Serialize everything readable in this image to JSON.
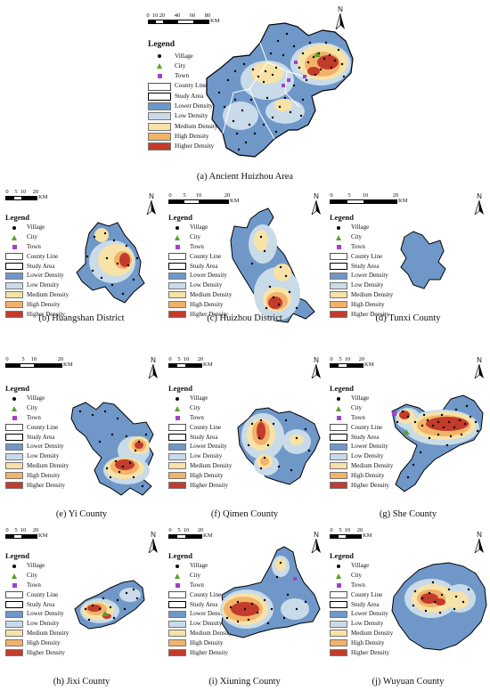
{
  "legend": {
    "title": "Legend",
    "items": [
      {
        "key": "village",
        "label": "Village",
        "symbol": "dot",
        "color": "#000000"
      },
      {
        "key": "city",
        "label": "City",
        "symbol": "triangle",
        "color": "#5aa02c"
      },
      {
        "key": "town",
        "label": "Town",
        "symbol": "square",
        "color": "#a43fd0"
      },
      {
        "key": "county",
        "label": "County Line",
        "symbol": "box-thin",
        "color": "#ffffff"
      },
      {
        "key": "study",
        "label": "Study Area",
        "symbol": "box-thick",
        "color": "#ffffff"
      },
      {
        "key": "lower",
        "label": "Lower Density",
        "symbol": "fill",
        "color": "#6f98c9"
      },
      {
        "key": "low",
        "label": "Low Density",
        "symbol": "fill",
        "color": "#c9dbe8"
      },
      {
        "key": "medium",
        "label": "Medium Density",
        "symbol": "fill",
        "color": "#f7e2a7"
      },
      {
        "key": "high",
        "label": "High Density",
        "symbol": "fill",
        "color": "#f2b26a"
      },
      {
        "key": "higher",
        "label": "Higher Density",
        "symbol": "fill",
        "color": "#c23b2b"
      }
    ]
  },
  "north_label": "N",
  "panels": [
    {
      "id": "a",
      "caption": "(a) Ancient Huizhou Area",
      "scale_labels": [
        "0",
        "10",
        "20",
        "40",
        "60",
        "80"
      ],
      "scale_unit": "KM"
    },
    {
      "id": "b",
      "caption": "(b) Huangshan District",
      "scale_labels": [
        "0",
        "5",
        "10",
        "20"
      ],
      "scale_unit": "KM"
    },
    {
      "id": "c",
      "caption": "(c) Huizhou District",
      "scale_labels": [
        "0",
        "5",
        "10",
        "20"
      ],
      "scale_unit": "KM"
    },
    {
      "id": "d",
      "caption": "(d) Tunxi County",
      "scale_labels": [
        "0",
        "5",
        "10",
        "20"
      ],
      "scale_unit": "KM"
    },
    {
      "id": "e",
      "caption": "(e) Yi County",
      "scale_labels": [
        "0",
        "5",
        "10",
        "20"
      ],
      "scale_unit": "KM"
    },
    {
      "id": "f",
      "caption": "(f) Qimen County",
      "scale_labels": [
        "0",
        "5",
        "10",
        "20"
      ],
      "scale_unit": "KM"
    },
    {
      "id": "g",
      "caption": "(g) She County",
      "scale_labels": [
        "0",
        "5",
        "10",
        "20"
      ],
      "scale_unit": "KM"
    },
    {
      "id": "h",
      "caption": "(h) Jixi County",
      "scale_labels": [
        "0",
        "5",
        "10",
        "20"
      ],
      "scale_unit": "KM"
    },
    {
      "id": "i",
      "caption": "(i) Xiuning County",
      "scale_labels": [
        "0",
        "5",
        "10",
        "20"
      ],
      "scale_unit": "KM"
    },
    {
      "id": "j",
      "caption": "(j) Wuyuan County",
      "scale_labels": [
        "0",
        "5",
        "10",
        "20"
      ],
      "scale_unit": "KM"
    }
  ]
}
